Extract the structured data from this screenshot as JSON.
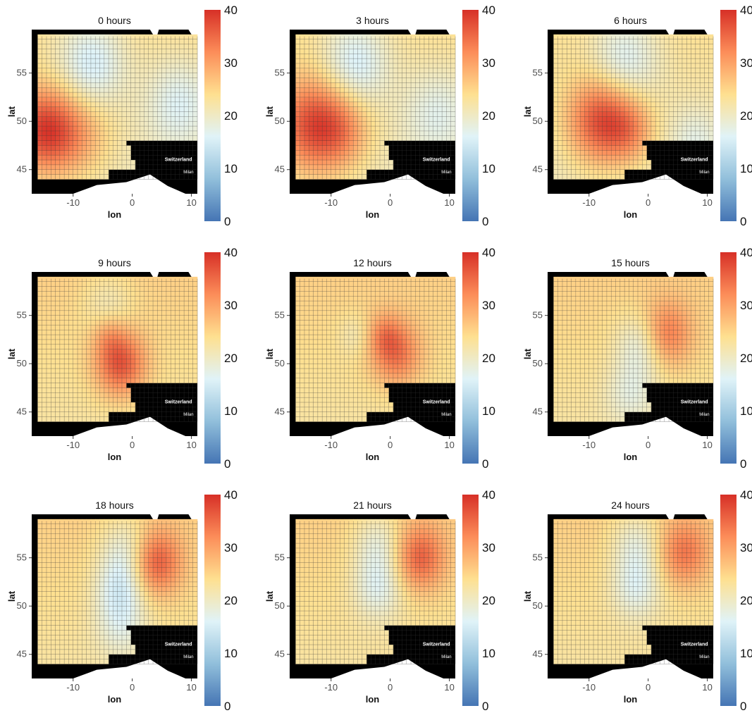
{
  "chart_data": {
    "type": "heatmap",
    "x_axis": {
      "label": "lon",
      "range": [
        -17,
        11
      ],
      "ticks": [
        -10,
        0,
        10
      ]
    },
    "y_axis": {
      "label": "lat",
      "range": [
        42.5,
        59.5
      ],
      "ticks": [
        45,
        50,
        55
      ]
    },
    "colorbar": {
      "range": [
        0,
        40
      ],
      "ticks": [
        0,
        10,
        20,
        30,
        40
      ],
      "colors": [
        "#4575b4",
        "#91bfdb",
        "#e0f3f8",
        "#fee090",
        "#fc8d59",
        "#d73027"
      ]
    },
    "colors": {
      "land_background": "#000000",
      "out_of_domain": "#ffffff"
    },
    "map_labels": [
      "Switzerland",
      "Milan"
    ],
    "panels": [
      {
        "title": "0  hours",
        "base": 22,
        "hotspots": [
          {
            "lon": -15,
            "lat": 49,
            "amp": 16,
            "r": 4
          },
          {
            "lon": -9,
            "lat": 48.5,
            "amp": 6,
            "r": 4
          }
        ],
        "coldspots": [
          {
            "lon": -7,
            "lat": 56,
            "amp": 8,
            "r": 4
          },
          {
            "lon": 8,
            "lat": 52,
            "amp": 6,
            "r": 4
          }
        ]
      },
      {
        "title": "3  hours",
        "base": 22,
        "hotspots": [
          {
            "lon": -13,
            "lat": 49.5,
            "amp": 15,
            "r": 4.5
          },
          {
            "lon": -8,
            "lat": 49,
            "amp": 6,
            "r": 3.5
          }
        ],
        "coldspots": [
          {
            "lon": -6,
            "lat": 56,
            "amp": 8,
            "r": 4
          },
          {
            "lon": 8,
            "lat": 51,
            "amp": 5,
            "r": 4
          }
        ]
      },
      {
        "title": "6  hours",
        "base": 22,
        "hotspots": [
          {
            "lon": -8,
            "lat": 50,
            "amp": 15,
            "r": 4
          },
          {
            "lon": -3,
            "lat": 49,
            "amp": 7,
            "r": 3
          }
        ],
        "coldspots": [
          {
            "lon": -4,
            "lat": 56.5,
            "amp": 7,
            "r": 4
          },
          {
            "lon": 8,
            "lat": 48,
            "amp": 4,
            "r": 3
          }
        ]
      },
      {
        "title": "9  hours",
        "base": 24,
        "hotspots": [
          {
            "lon": -2,
            "lat": 50,
            "amp": 13,
            "r": 3
          },
          {
            "lon": -4,
            "lat": 53,
            "amp": 4,
            "r": 2
          }
        ],
        "coldspots": [
          {
            "lon": -4,
            "lat": 56,
            "amp": 4,
            "r": 3
          }
        ]
      },
      {
        "title": "12  hours",
        "base": 24,
        "hotspots": [
          {
            "lon": 1,
            "lat": 51,
            "amp": 10,
            "r": 3
          },
          {
            "lon": -1,
            "lat": 53,
            "amp": 5,
            "r": 2
          }
        ],
        "coldspots": [
          {
            "lon": -6,
            "lat": 53,
            "amp": 3,
            "r": 2
          }
        ]
      },
      {
        "title": "15  hours",
        "base": 24,
        "hotspots": [
          {
            "lon": 3,
            "lat": 53,
            "amp": 10,
            "r": 3
          }
        ],
        "coldspots": [
          {
            "lon": -1,
            "lat": 52,
            "amp": 7,
            "r": 3
          },
          {
            "lon": -3,
            "lat": 47,
            "amp": 5,
            "r": 3
          }
        ]
      },
      {
        "title": "18  hours",
        "base": 24,
        "hotspots": [
          {
            "lon": 4,
            "lat": 54.5,
            "amp": 12,
            "r": 3
          }
        ],
        "coldspots": [
          {
            "lon": -2,
            "lat": 52,
            "amp": 8,
            "r": 3
          },
          {
            "lon": -1,
            "lat": 56,
            "amp": 6,
            "r": 3
          },
          {
            "lon": -2,
            "lat": 48,
            "amp": 5,
            "r": 3
          }
        ]
      },
      {
        "title": "21  hours",
        "base": 24,
        "hotspots": [
          {
            "lon": 5,
            "lat": 55,
            "amp": 11,
            "r": 3
          }
        ],
        "coldspots": [
          {
            "lon": -2,
            "lat": 52,
            "amp": 7,
            "r": 3
          },
          {
            "lon": -2,
            "lat": 56.5,
            "amp": 6,
            "r": 3
          }
        ]
      },
      {
        "title": "24  hours",
        "base": 24,
        "hotspots": [
          {
            "lon": 6,
            "lat": 55.5,
            "amp": 9,
            "r": 3
          }
        ],
        "coldspots": [
          {
            "lon": -2,
            "lat": 52,
            "amp": 7,
            "r": 3
          },
          {
            "lon": -2,
            "lat": 56.5,
            "amp": 6,
            "r": 3
          }
        ]
      }
    ]
  }
}
